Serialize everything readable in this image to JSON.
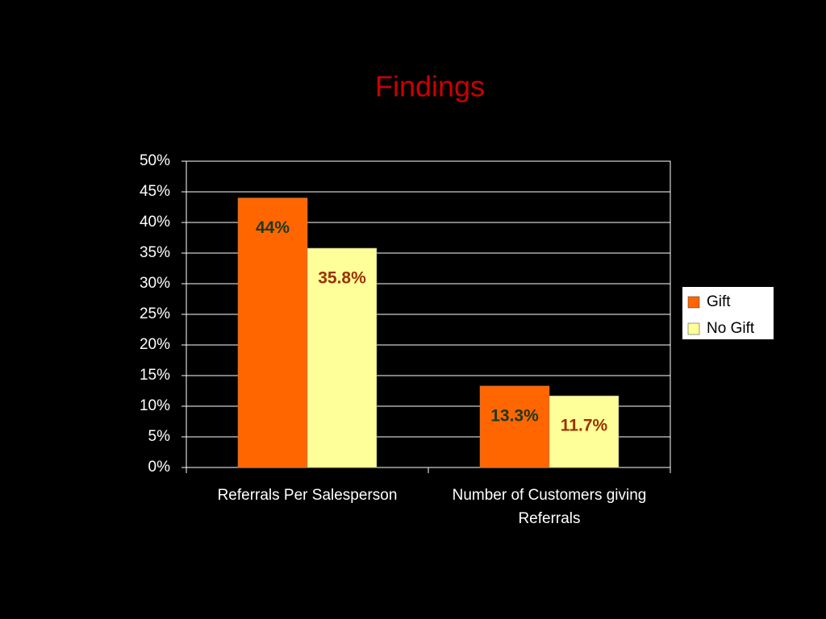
{
  "chart_data": {
    "type": "bar",
    "title": "Findings",
    "categories": [
      "Referrals Per Salesperson",
      "Number of Customers giving Referrals"
    ],
    "series": [
      {
        "name": "Gift",
        "color": "#ff6600",
        "values": [
          44,
          13.3
        ],
        "value_labels": [
          "44%",
          "13.3%"
        ],
        "label_color": "#1c3a1c"
      },
      {
        "name": "No Gift",
        "color": "#ffff99",
        "values": [
          35.8,
          11.7
        ],
        "value_labels": [
          "35.8%",
          "11.7%"
        ],
        "label_color": "#993300"
      }
    ],
    "ylim": [
      0,
      50
    ],
    "yticks": [
      {
        "value": 0,
        "label": "0%"
      },
      {
        "value": 5,
        "label": "5%"
      },
      {
        "value": 10,
        "label": "10%"
      },
      {
        "value": 15,
        "label": "15%"
      },
      {
        "value": 20,
        "label": "20%"
      },
      {
        "value": 25,
        "label": "25%"
      },
      {
        "value": 30,
        "label": "30%"
      },
      {
        "value": 35,
        "label": "35%"
      },
      {
        "value": 40,
        "label": "40%"
      },
      {
        "value": 45,
        "label": "45%"
      },
      {
        "value": 50,
        "label": "50%"
      }
    ],
    "grid": true,
    "legend": "right"
  }
}
